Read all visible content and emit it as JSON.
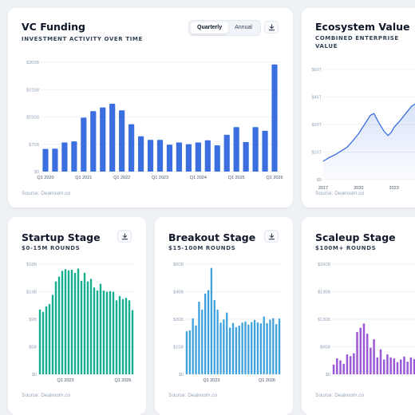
{
  "cards": [
    {
      "id": "vc",
      "title": "VC Funding",
      "subtitle": "INVESTMENT ACTIVITY OVER TIME",
      "source": "Source: Dealroom.co",
      "toggle": [
        "Quarterly",
        "Annual"
      ],
      "toggle_active": 0,
      "download_icon": "download-icon"
    },
    {
      "id": "eco",
      "title": "Ecosystem Value",
      "subtitle": "COMBINED ENTERPRISE VALUE",
      "source": "Source: Dealroom.co"
    },
    {
      "id": "startup",
      "title": "Startup Stage",
      "subtitle": "$0-15M ROUNDS",
      "source": "Source: Dealroom.co",
      "download_icon": "download-icon"
    },
    {
      "id": "breakout",
      "title": "Breakout Stage",
      "subtitle": "$15-100M ROUNDS",
      "source": "Source: Dealroom.co",
      "download_icon": "download-icon"
    },
    {
      "id": "scaleup",
      "title": "Scaleup Stage",
      "subtitle": "$100M+ ROUNDS",
      "source": "Source: Dealroom.co"
    }
  ],
  "chart_data": [
    {
      "id": "vc",
      "type": "bar",
      "color": "#3b6fe0",
      "ylim": [
        0,
        300
      ],
      "yticks": [
        0,
        75,
        150,
        225,
        300
      ],
      "ytick_labels": [
        "$0",
        "$75B",
        "$150B",
        "$225B",
        "$300B"
      ],
      "xtick_labels": [
        {
          "index": 0,
          "label": "Q1 2020"
        },
        {
          "index": 4,
          "label": "Q1 2021"
        },
        {
          "index": 8,
          "label": "Q1 2022"
        },
        {
          "index": 12,
          "label": "Q1 2023"
        },
        {
          "index": 16,
          "label": "Q1 2024"
        },
        {
          "index": 20,
          "label": "Q1 2025"
        },
        {
          "index": 24,
          "label": "Q1 2026"
        }
      ],
      "values": [
        62,
        63,
        80,
        83,
        148,
        166,
        176,
        186,
        168,
        130,
        97,
        87,
        87,
        74,
        80,
        75,
        80,
        86,
        72,
        101,
        122,
        81,
        122,
        112,
        294
      ]
    },
    {
      "id": "eco",
      "type": "area",
      "color": "#3b6fe0",
      "ylim": [
        0,
        60
      ],
      "yticks": [
        0,
        15,
        30,
        45,
        60
      ],
      "ytick_labels": [
        "$0",
        "$15T",
        "$30T",
        "$45T",
        "$60T"
      ],
      "xlim": [
        2017,
        2026
      ],
      "xtick_labels": [
        "2017",
        "2020",
        "2023"
      ],
      "xtick_values": [
        2017,
        2020,
        2023
      ],
      "x": [
        2017,
        2017.5,
        2018,
        2018.5,
        2019,
        2019.5,
        2020,
        2020.5,
        2021,
        2021.3,
        2021.8,
        2022.2,
        2022.5,
        2022.8,
        2023,
        2023.5,
        2024,
        2024.5,
        2025,
        2025.5,
        2026
      ],
      "y": [
        10,
        12,
        13.5,
        15.5,
        17.5,
        21,
        25,
        30,
        35,
        36,
        30,
        26,
        24,
        26,
        28.5,
        32,
        36,
        40,
        42,
        44,
        46
      ]
    },
    {
      "id": "startup",
      "type": "bar",
      "color": "#14b091",
      "ylim": [
        0,
        18
      ],
      "yticks": [
        0,
        4.5,
        9,
        13.5,
        18
      ],
      "ytick_labels": [
        "$0",
        "$5B",
        "$9B",
        "$14B",
        "$18B"
      ],
      "xtick_labels": [
        {
          "index": 8,
          "label": "Q1 2023"
        },
        {
          "index": 26,
          "label": "Q1 2026"
        }
      ],
      "values": [
        10.6,
        10.2,
        11.1,
        11.5,
        13.0,
        15.2,
        16.0,
        16.9,
        17.2,
        17.0,
        17.1,
        16.6,
        17.3,
        15.3,
        16.6,
        15.2,
        15.6,
        14.2,
        13.7,
        14.8,
        13.7,
        13.5,
        13.6,
        13.5,
        12.1,
        12.8,
        12.3,
        12.5,
        12.1,
        10.5
      ]
    },
    {
      "id": "breakout",
      "type": "bar",
      "color": "#3fa2dd",
      "ylim": [
        0,
        60
      ],
      "yticks": [
        0,
        15,
        30,
        45,
        60
      ],
      "ytick_labels": [
        "$0",
        "$15B",
        "$30B",
        "$45B",
        "$60B"
      ],
      "xtick_labels": [
        {
          "index": 8,
          "label": "Q1 2023"
        },
        {
          "index": 26,
          "label": "Q1 2026"
        }
      ],
      "values": [
        23.5,
        24.0,
        30.5,
        26.7,
        39.6,
        35.2,
        44.0,
        45.9,
        58.0,
        40.5,
        35.2,
        28.2,
        29.9,
        33.7,
        25.5,
        28.0,
        25.7,
        26.6,
        28.2,
        28.8,
        27.1,
        28.5,
        29.7,
        28.3,
        27.8,
        31.5,
        27.9,
        29.8,
        30.6,
        27.4,
        30.4
      ]
    },
    {
      "id": "scaleup",
      "type": "bar",
      "color": "#9b59d8",
      "ylim": [
        0,
        260
      ],
      "yticks": [
        0,
        65,
        130,
        195,
        260
      ],
      "ytick_labels": [
        "$0",
        "$65B",
        "$130B",
        "$195B",
        "$260B"
      ],
      "values": [
        23,
        38,
        33,
        25,
        47,
        43,
        50,
        100,
        110,
        120,
        96,
        63,
        83,
        40,
        59,
        35,
        47,
        40,
        38,
        29,
        35,
        42,
        30,
        40,
        36,
        35,
        52,
        63,
        91
      ]
    }
  ]
}
